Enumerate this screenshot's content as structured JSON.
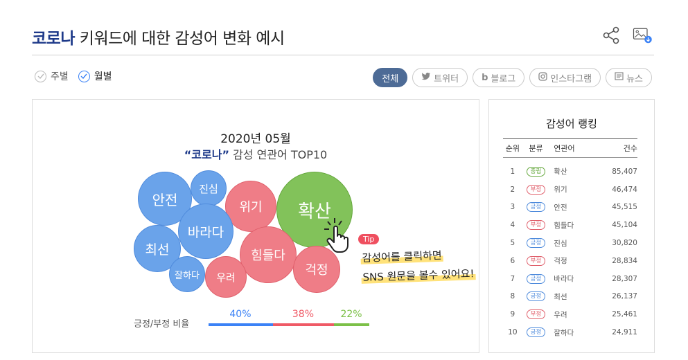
{
  "header": {
    "title_keyword": "코로나",
    "title_rest": " 키워드에 대한 감성어 변화 예시"
  },
  "icons": {
    "share": "share-icon",
    "image_download": "image-download-icon"
  },
  "period": {
    "weekly": "주별",
    "monthly": "월별",
    "selected": "월별"
  },
  "filters": [
    {
      "label": "전체",
      "icon": "",
      "active": true
    },
    {
      "label": "트위터",
      "icon": "twitter-icon",
      "active": false
    },
    {
      "label": "블로그",
      "icon": "blog-icon",
      "active": false
    },
    {
      "label": "인스타그램",
      "icon": "instagram-icon",
      "active": false
    },
    {
      "label": "뉴스",
      "icon": "news-icon",
      "active": false
    }
  ],
  "chart": {
    "title": "2020년 05월",
    "subtitle_keyword": "“코로나”",
    "subtitle_rest": " 감성 연관어 TOP10",
    "tip_badge": "Tip",
    "tip_line1": "감성어를 클릭하면",
    "tip_line2": "SNS 원문을 볼수 있어요!",
    "ratio_label": "긍정/부정 비율",
    "colors": {
      "positive": "#6aa3ea",
      "negative": "#ef7d87",
      "neutral": "#82c25a"
    }
  },
  "chart_data": {
    "type": "bubble",
    "title": "2020년 05월",
    "subtitle": "“코로나” 감성 연관어 TOP10",
    "bubbles": [
      {
        "word": "확산",
        "category": "중립",
        "count": 85407
      },
      {
        "word": "위기",
        "category": "부정",
        "count": 46474
      },
      {
        "word": "안전",
        "category": "긍정",
        "count": 45515
      },
      {
        "word": "힘들다",
        "category": "부정",
        "count": 45104
      },
      {
        "word": "진심",
        "category": "긍정",
        "count": 30820
      },
      {
        "word": "걱정",
        "category": "부정",
        "count": 28834
      },
      {
        "word": "바라다",
        "category": "긍정",
        "count": 28307
      },
      {
        "word": "최선",
        "category": "긍정",
        "count": 26137
      },
      {
        "word": "우려",
        "category": "부정",
        "count": 25461
      },
      {
        "word": "잘하다",
        "category": "긍정",
        "count": 24911
      }
    ],
    "ratio": [
      {
        "name": "긍정",
        "percent": 40,
        "label": "40%"
      },
      {
        "name": "부정",
        "percent": 38,
        "label": "38%"
      },
      {
        "name": "중립",
        "percent": 22,
        "label": "22%"
      }
    ]
  },
  "ranking": {
    "title": "감성어 랭킹",
    "headers": {
      "rank": "순위",
      "category": "분류",
      "word": "연관어",
      "count": "건수"
    },
    "rows": [
      {
        "rank": "1",
        "category": "중립",
        "type": "neu",
        "word": "확산",
        "count": "85,407"
      },
      {
        "rank": "2",
        "category": "부정",
        "type": "neg",
        "word": "위기",
        "count": "46,474"
      },
      {
        "rank": "3",
        "category": "긍정",
        "type": "pos",
        "word": "안전",
        "count": "45,515"
      },
      {
        "rank": "4",
        "category": "부정",
        "type": "neg",
        "word": "힘들다",
        "count": "45,104"
      },
      {
        "rank": "5",
        "category": "긍정",
        "type": "pos",
        "word": "진심",
        "count": "30,820"
      },
      {
        "rank": "6",
        "category": "부정",
        "type": "neg",
        "word": "걱정",
        "count": "28,834"
      },
      {
        "rank": "7",
        "category": "긍정",
        "type": "pos",
        "word": "바라다",
        "count": "28,307"
      },
      {
        "rank": "8",
        "category": "긍정",
        "type": "pos",
        "word": "최선",
        "count": "26,137"
      },
      {
        "rank": "9",
        "category": "부정",
        "type": "neg",
        "word": "우려",
        "count": "25,461"
      },
      {
        "rank": "10",
        "category": "긍정",
        "type": "pos",
        "word": "잘하다",
        "count": "24,911"
      }
    ]
  }
}
